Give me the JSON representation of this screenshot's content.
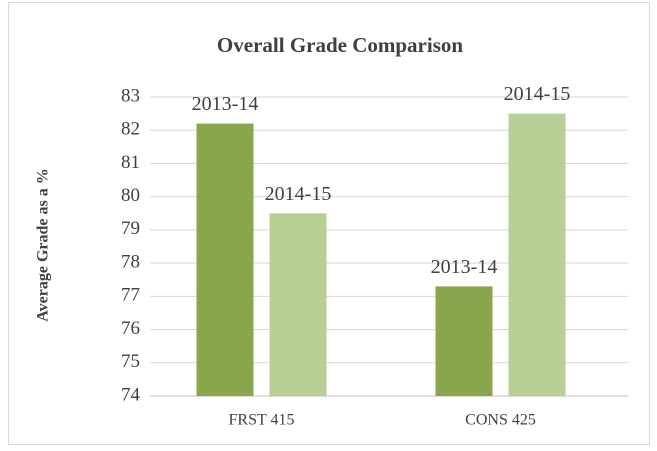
{
  "chart_data": {
    "type": "bar",
    "title": "Overall Grade Comparison",
    "y_label": "Average Grade as a %",
    "categories": [
      "FRST 415",
      "CONS 425"
    ],
    "series": [
      {
        "name": "2013-14",
        "color": "#8aa64c",
        "values": [
          82.2,
          77.3
        ]
      },
      {
        "name": "2014-15",
        "color": "#b8cf95",
        "values": [
          79.5,
          82.5
        ]
      }
    ],
    "ylim": [
      74,
      83
    ],
    "yticks": [
      74,
      75,
      76,
      77,
      78,
      79,
      80,
      81,
      82,
      83
    ],
    "grid": true
  }
}
